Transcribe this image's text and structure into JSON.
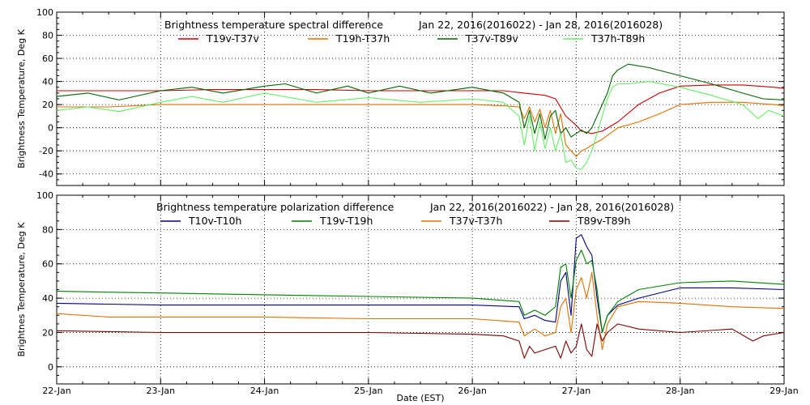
{
  "chart_data": [
    {
      "type": "line",
      "title": "Brightness temperature spectral difference",
      "subtitle": "Jan 22, 2016(2016022) - Jan 28, 2016(2016028)",
      "xlabel": "",
      "ylabel": "Brightness Temperature, Deg K",
      "xlim": [
        0,
        7
      ],
      "ylim": [
        -50,
        100
      ],
      "yticks": [
        -40,
        -20,
        0,
        20,
        40,
        60,
        80,
        100
      ],
      "xtick_labels": [
        "22-Jan",
        "23-Jan",
        "24-Jan",
        "25-Jan",
        "26-Jan",
        "27-Jan",
        "28-Jan",
        "29-Jan"
      ],
      "show_xtick_labels": false,
      "grid": true,
      "series": [
        {
          "name": "T19v-T37v",
          "color": "#cc0000",
          "x": [
            0,
            0.5,
            1,
            1.5,
            2,
            2.5,
            3,
            3.5,
            4,
            4.3,
            4.5,
            4.7,
            4.8,
            4.9,
            5.0,
            5.05,
            5.15,
            5.25,
            5.4,
            5.6,
            5.8,
            6.0,
            6.3,
            6.6,
            6.9,
            7.0
          ],
          "y": [
            32,
            32,
            32,
            33,
            33,
            33,
            32,
            32,
            32,
            32,
            30,
            28,
            25,
            10,
            2,
            -3,
            -5,
            -3,
            5,
            20,
            30,
            36,
            37,
            37,
            35,
            34
          ]
        },
        {
          "name": "T19h-T37h",
          "color": "#e07000",
          "x": [
            0,
            0.5,
            1,
            1.5,
            2,
            2.5,
            3,
            3.5,
            4,
            4.3,
            4.45,
            4.5,
            4.55,
            4.6,
            4.65,
            4.7,
            4.75,
            4.8,
            4.85,
            4.9,
            4.95,
            5.0,
            5.05,
            5.1,
            5.15,
            5.25,
            5.4,
            5.6,
            5.8,
            6.0,
            6.3,
            6.6,
            6.9,
            7.0
          ],
          "y": [
            18,
            18,
            20,
            20,
            20,
            20,
            20,
            20,
            20,
            19,
            18,
            8,
            18,
            5,
            16,
            0,
            15,
            -5,
            12,
            -15,
            -20,
            -25,
            -20,
            -18,
            -15,
            -10,
            0,
            5,
            12,
            20,
            22,
            22,
            20,
            19
          ]
        },
        {
          "name": "T37v-T89v",
          "color": "#006400",
          "x": [
            0,
            0.3,
            0.6,
            1,
            1.3,
            1.6,
            2,
            2.2,
            2.5,
            2.8,
            3,
            3.3,
            3.6,
            4,
            4.3,
            4.45,
            4.5,
            4.55,
            4.6,
            4.65,
            4.7,
            4.75,
            4.8,
            4.85,
            4.9,
            4.95,
            5.0,
            5.05,
            5.1,
            5.15,
            5.2,
            5.25,
            5.3,
            5.35,
            5.4,
            5.5,
            5.7,
            6.0,
            6.3,
            6.6,
            6.8,
            7.0
          ],
          "y": [
            27,
            30,
            24,
            32,
            35,
            30,
            36,
            38,
            30,
            36,
            30,
            36,
            30,
            35,
            30,
            22,
            0,
            15,
            -5,
            12,
            -10,
            10,
            15,
            -5,
            0,
            -8,
            -5,
            -2,
            -5,
            0,
            10,
            20,
            30,
            45,
            50,
            55,
            52,
            45,
            38,
            30,
            25,
            24
          ]
        },
        {
          "name": "T37h-T89h",
          "color": "#66ee66",
          "x": [
            0,
            0.3,
            0.6,
            1,
            1.3,
            1.6,
            2,
            2.5,
            3,
            3.5,
            4,
            4.3,
            4.45,
            4.5,
            4.55,
            4.6,
            4.65,
            4.7,
            4.75,
            4.8,
            4.85,
            4.9,
            4.95,
            5.0,
            5.05,
            5.1,
            5.15,
            5.2,
            5.25,
            5.3,
            5.35,
            5.4,
            5.5,
            5.7,
            6.0,
            6.3,
            6.6,
            6.75,
            6.85,
            7.0
          ],
          "y": [
            15,
            18,
            14,
            22,
            27,
            22,
            30,
            22,
            26,
            22,
            25,
            22,
            10,
            -15,
            10,
            -20,
            5,
            -18,
            0,
            -20,
            -5,
            -30,
            -28,
            -35,
            -36,
            -30,
            -20,
            -5,
            10,
            25,
            35,
            38,
            38,
            40,
            35,
            28,
            20,
            8,
            15,
            10
          ]
        }
      ]
    },
    {
      "type": "line",
      "title": "Brightness temperature polarization difference",
      "subtitle": "Jan 22, 2016(2016022) - Jan 28, 2016(2016028)",
      "xlabel": "Date (EST)",
      "ylabel": "Brightnes Temperature, Deg K",
      "xlim": [
        0,
        7
      ],
      "ylim": [
        -10,
        100
      ],
      "yticks": [
        0,
        20,
        40,
        60,
        80,
        100
      ],
      "xtick_labels": [
        "22-Jan",
        "23-Jan",
        "24-Jan",
        "25-Jan",
        "26-Jan",
        "27-Jan",
        "28-Jan",
        "29-Jan"
      ],
      "show_xtick_labels": true,
      "grid": true,
      "series": [
        {
          "name": "T10v-T10h",
          "color": "#000080",
          "x": [
            0,
            1,
            2,
            3,
            4,
            4.45,
            4.5,
            4.6,
            4.7,
            4.8,
            4.85,
            4.9,
            4.95,
            5.0,
            5.05,
            5.1,
            5.15,
            5.2,
            5.25,
            5.3,
            5.4,
            5.6,
            6.0,
            6.5,
            7.0
          ],
          "y": [
            37,
            36,
            36,
            36,
            36,
            35,
            28,
            30,
            27,
            26,
            50,
            55,
            30,
            75,
            77,
            70,
            65,
            40,
            20,
            30,
            36,
            40,
            46,
            46,
            45
          ]
        },
        {
          "name": "T19v-T19h",
          "color": "#008000",
          "x": [
            0,
            1,
            2,
            3,
            4,
            4.45,
            4.5,
            4.6,
            4.7,
            4.8,
            4.85,
            4.9,
            4.95,
            5.0,
            5.05,
            5.1,
            5.15,
            5.2,
            5.25,
            5.3,
            5.4,
            5.6,
            6.0,
            6.5,
            7.0
          ],
          "y": [
            44,
            43,
            42,
            41,
            40,
            38,
            30,
            33,
            30,
            35,
            58,
            60,
            40,
            62,
            68,
            60,
            62,
            45,
            20,
            30,
            38,
            45,
            49,
            50,
            48
          ]
        },
        {
          "name": "T37v-T37h",
          "color": "#e07000",
          "x": [
            0,
            0.5,
            1,
            2,
            3,
            4,
            4.45,
            4.5,
            4.6,
            4.7,
            4.8,
            4.85,
            4.9,
            4.95,
            5.0,
            5.05,
            5.1,
            5.15,
            5.2,
            5.25,
            5.3,
            5.4,
            5.6,
            6.0,
            6.5,
            7.0
          ],
          "y": [
            31,
            29,
            29,
            29,
            28,
            28,
            26,
            18,
            22,
            18,
            20,
            35,
            40,
            20,
            45,
            52,
            40,
            55,
            30,
            10,
            25,
            35,
            38,
            37,
            35,
            34
          ]
        },
        {
          "name": "T89v-T89h",
          "color": "#7a0000",
          "x": [
            0,
            1,
            2,
            3,
            4,
            4.3,
            4.45,
            4.5,
            4.55,
            4.6,
            4.7,
            4.8,
            4.85,
            4.9,
            4.95,
            5.0,
            5.05,
            5.1,
            5.15,
            5.2,
            5.25,
            5.3,
            5.4,
            5.6,
            6.0,
            6.5,
            6.7,
            6.8,
            7.0
          ],
          "y": [
            21,
            20,
            20,
            20,
            19,
            18,
            15,
            5,
            12,
            8,
            10,
            12,
            5,
            15,
            8,
            12,
            25,
            10,
            6,
            25,
            15,
            20,
            25,
            22,
            20,
            22,
            15,
            18,
            20
          ]
        }
      ]
    }
  ]
}
